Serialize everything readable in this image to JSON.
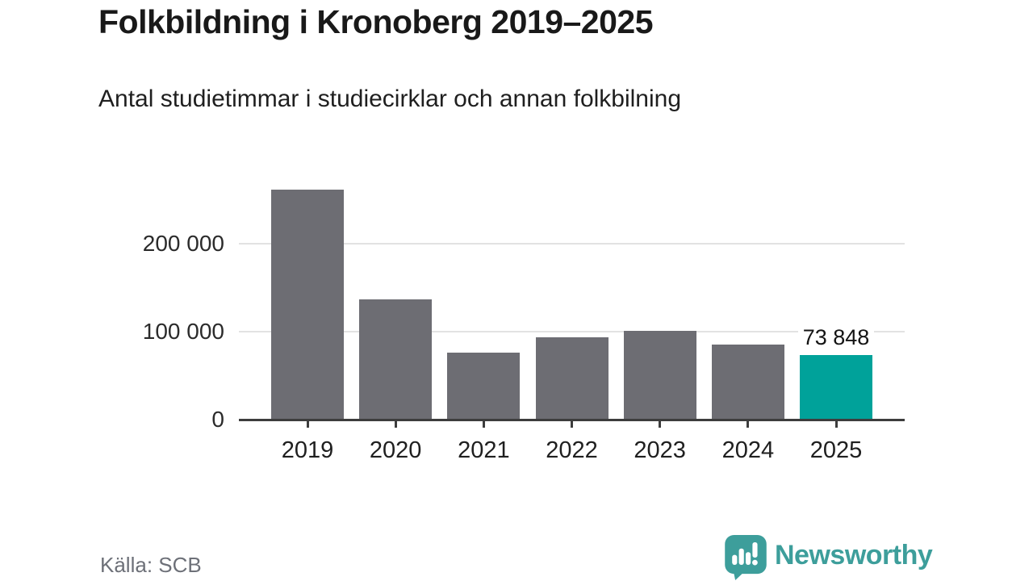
{
  "header": {
    "title": "Folkbildning i Kronoberg 2019–2025",
    "subtitle": "Antal studietimmar i studiecirklar och annan folkbilning"
  },
  "footer": {
    "source": "Källa: SCB",
    "brand": "Newsworthy",
    "brand_icon": "newsworthy-speech-bubble-bar-chart-icon"
  },
  "colors": {
    "background": "#ffffff",
    "bar": "#6d6d73",
    "bar_highlight": "#00a29a",
    "gridline": "#e2e2e2",
    "axis": "#3d3d3d",
    "title_text": "#191919",
    "body_text": "#1f1f1f",
    "source_text": "#6d7078",
    "brand_teal": "#3d9e9b"
  },
  "chart_data": {
    "type": "bar",
    "title": "Folkbildning i Kronoberg 2019–2025",
    "subtitle": "Antal studietimmar i studiecirklar och annan folkbilning",
    "categories": [
      "2019",
      "2020",
      "2021",
      "2022",
      "2023",
      "2024",
      "2025"
    ],
    "values": [
      261500,
      136500,
      76000,
      94000,
      101000,
      85500,
      73848
    ],
    "highlight_index": 6,
    "data_labels": [
      {
        "index": 6,
        "text": "73 848"
      }
    ],
    "yticks": [
      {
        "value": 0,
        "label": "0"
      },
      {
        "value": 100000,
        "label": "100 000"
      },
      {
        "value": 200000,
        "label": "200 000"
      }
    ],
    "ylim": [
      0,
      265000
    ],
    "xlabel": "",
    "ylabel": "",
    "grid": "horizontal-only",
    "legend": "none"
  }
}
